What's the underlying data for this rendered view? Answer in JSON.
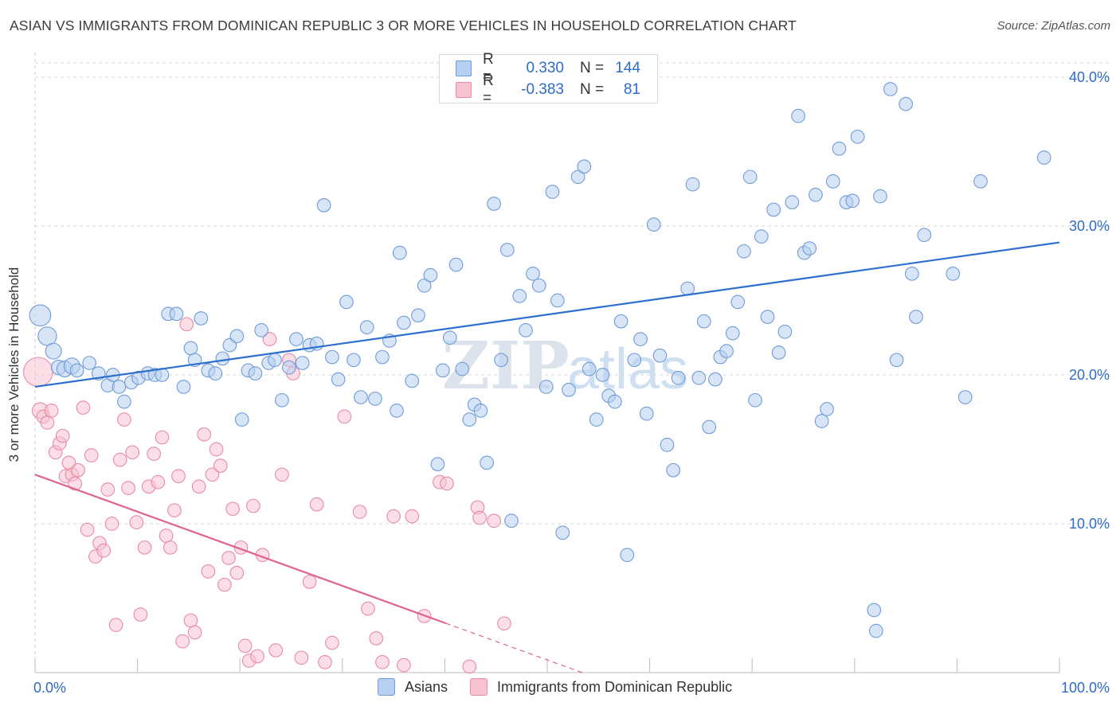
{
  "title": "ASIAN VS IMMIGRANTS FROM DOMINICAN REPUBLIC 3 OR MORE VEHICLES IN HOUSEHOLD CORRELATION CHART",
  "source": "Source: ZipAtlas.com",
  "watermark": {
    "zip": "ZIP",
    "atlas": "atlas"
  },
  "legend_stats": {
    "asians": {
      "r_label": "R =",
      "r_value": "0.330",
      "n_label": "N =",
      "n_value": "144"
    },
    "dominican": {
      "r_label": "R =",
      "r_value": "-0.383",
      "n_label": "N =",
      "n_value": "81"
    }
  },
  "legend": {
    "asians": "Asians",
    "dominican": "Immigrants from Dominican Republic"
  },
  "colors": {
    "asians_fill": "#b7cff0",
    "asians_stroke": "#6f9bd8",
    "asians_line": "#2d6fd0",
    "dominican_fill": "#f7c3d2",
    "dominican_stroke": "#e88aa8",
    "dominican_line": "#e0638d",
    "tick_label": "#2d6cc7",
    "grid": "#d9d9d9"
  },
  "chart_data": {
    "type": "scatter",
    "title": "ASIAN VS IMMIGRANTS FROM DOMINICAN REPUBLIC 3 OR MORE VEHICLES IN HOUSEHOLD CORRELATION CHART",
    "xlabel": "",
    "ylabel": "3 or more Vehicles in Household",
    "xlim": [
      0,
      100
    ],
    "ylim": [
      0,
      40
    ],
    "x_tick_labels": [
      "0.0%",
      "100.0%"
    ],
    "y_ticks": [
      10,
      20,
      30,
      40
    ],
    "y_tick_labels": [
      "10.0%",
      "20.0%",
      "30.0%",
      "40.0%"
    ],
    "grid": true,
    "legend_position": "bottom",
    "series": [
      {
        "name": "Asians",
        "r": 0.33,
        "n": 144,
        "trend": {
          "x": [
            0,
            100
          ],
          "y": [
            19.2,
            28.9
          ],
          "dashed_from_x": null
        },
        "points": [
          [
            0.5,
            24.0,
            1.6
          ],
          [
            1.2,
            22.6,
            1.4
          ],
          [
            1.8,
            21.6,
            1.2
          ],
          [
            2.3,
            20.5,
            1.1
          ],
          [
            2.9,
            20.4,
            1.2
          ],
          [
            3.6,
            20.6,
            1.2
          ],
          [
            4.1,
            20.3,
            1
          ],
          [
            5.3,
            20.8,
            1
          ],
          [
            6.2,
            20.1,
            1
          ],
          [
            7.1,
            19.3,
            1
          ],
          [
            7.6,
            20.0,
            1
          ],
          [
            8.2,
            19.2,
            1
          ],
          [
            8.7,
            18.2,
            1
          ],
          [
            9.4,
            19.5,
            1
          ],
          [
            10.1,
            19.8,
            1
          ],
          [
            11.0,
            20.1,
            1
          ],
          [
            11.7,
            20.0,
            1
          ],
          [
            12.4,
            20.0,
            1
          ],
          [
            13.0,
            24.1,
            1
          ],
          [
            13.8,
            24.1,
            1
          ],
          [
            14.5,
            19.2,
            1
          ],
          [
            15.2,
            21.8,
            1
          ],
          [
            15.6,
            21.0,
            1
          ],
          [
            16.2,
            23.8,
            1
          ],
          [
            16.9,
            20.3,
            1
          ],
          [
            17.6,
            20.1,
            1
          ],
          [
            18.3,
            21.1,
            1
          ],
          [
            19.0,
            22.0,
            1
          ],
          [
            19.7,
            22.6,
            1
          ],
          [
            20.2,
            17.0,
            1
          ],
          [
            20.8,
            20.3,
            1
          ],
          [
            21.5,
            20.1,
            1
          ],
          [
            22.1,
            23.0,
            1
          ],
          [
            22.8,
            20.8,
            1
          ],
          [
            23.4,
            21.0,
            1
          ],
          [
            24.1,
            18.3,
            1
          ],
          [
            24.8,
            20.5,
            1
          ],
          [
            25.5,
            22.4,
            1
          ],
          [
            26.1,
            20.8,
            1
          ],
          [
            26.8,
            22.0,
            1
          ],
          [
            27.5,
            22.1,
            1
          ],
          [
            28.2,
            31.4,
            1
          ],
          [
            29.0,
            21.2,
            1
          ],
          [
            29.6,
            19.7,
            1
          ],
          [
            30.4,
            24.9,
            1
          ],
          [
            31.1,
            21.0,
            1
          ],
          [
            31.8,
            18.5,
            1
          ],
          [
            32.4,
            23.2,
            1
          ],
          [
            33.2,
            18.4,
            1
          ],
          [
            33.9,
            21.2,
            1
          ],
          [
            34.6,
            22.3,
            1
          ],
          [
            35.3,
            17.6,
            1
          ],
          [
            35.6,
            28.2,
            1
          ],
          [
            36.0,
            23.5,
            1
          ],
          [
            36.8,
            19.6,
            1
          ],
          [
            37.4,
            24.0,
            1
          ],
          [
            38.0,
            26.0,
            1
          ],
          [
            38.6,
            26.7,
            1
          ],
          [
            39.3,
            14.0,
            1
          ],
          [
            39.8,
            20.3,
            1
          ],
          [
            40.5,
            22.5,
            1
          ],
          [
            41.1,
            27.4,
            1
          ],
          [
            41.7,
            20.4,
            1
          ],
          [
            42.4,
            17.0,
            1
          ],
          [
            42.9,
            18.0,
            1
          ],
          [
            43.5,
            17.6,
            1
          ],
          [
            44.1,
            14.1,
            1
          ],
          [
            44.8,
            31.5,
            1
          ],
          [
            45.5,
            21.0,
            1
          ],
          [
            46.1,
            28.4,
            1
          ],
          [
            46.5,
            10.2,
            1
          ],
          [
            47.3,
            25.3,
            1
          ],
          [
            47.9,
            23.0,
            1
          ],
          [
            48.6,
            26.8,
            1
          ],
          [
            49.2,
            26.0,
            1
          ],
          [
            49.9,
            19.2,
            1
          ],
          [
            50.5,
            32.3,
            1
          ],
          [
            51.0,
            25.0,
            1
          ],
          [
            51.5,
            9.4,
            1
          ],
          [
            52.1,
            19.0,
            1
          ],
          [
            53.0,
            33.3,
            1
          ],
          [
            53.6,
            34.0,
            1
          ],
          [
            54.1,
            20.4,
            1
          ],
          [
            54.8,
            17.0,
            1
          ],
          [
            55.4,
            20.0,
            1
          ],
          [
            56.0,
            18.6,
            1
          ],
          [
            56.6,
            18.2,
            1
          ],
          [
            57.2,
            23.6,
            1
          ],
          [
            57.8,
            7.9,
            1
          ],
          [
            58.5,
            21.0,
            1
          ],
          [
            59.1,
            22.4,
            1
          ],
          [
            59.7,
            17.4,
            1
          ],
          [
            60.4,
            30.1,
            1
          ],
          [
            61.0,
            21.3,
            1
          ],
          [
            61.7,
            15.3,
            1
          ],
          [
            62.3,
            13.6,
            1
          ],
          [
            62.8,
            19.8,
            1
          ],
          [
            63.7,
            25.8,
            1
          ],
          [
            64.2,
            32.8,
            1
          ],
          [
            64.8,
            19.8,
            1
          ],
          [
            65.3,
            23.6,
            1
          ],
          [
            65.8,
            16.5,
            1
          ],
          [
            66.4,
            19.7,
            1
          ],
          [
            66.9,
            21.2,
            1
          ],
          [
            67.5,
            21.6,
            1
          ],
          [
            68.1,
            22.8,
            1
          ],
          [
            68.6,
            24.9,
            1
          ],
          [
            69.2,
            28.3,
            1
          ],
          [
            69.8,
            33.3,
            1
          ],
          [
            70.3,
            18.3,
            1
          ],
          [
            70.9,
            29.3,
            1
          ],
          [
            71.5,
            23.9,
            1
          ],
          [
            72.1,
            31.1,
            1
          ],
          [
            72.6,
            21.5,
            1
          ],
          [
            73.2,
            22.9,
            1
          ],
          [
            73.9,
            31.6,
            1
          ],
          [
            74.5,
            37.4,
            1
          ],
          [
            75.1,
            28.2,
            1
          ],
          [
            75.6,
            28.5,
            1
          ],
          [
            76.2,
            32.1,
            1
          ],
          [
            76.8,
            16.9,
            1
          ],
          [
            77.3,
            17.7,
            1
          ],
          [
            77.9,
            33.0,
            1
          ],
          [
            78.5,
            35.2,
            1
          ],
          [
            79.2,
            31.6,
            1
          ],
          [
            79.8,
            31.7,
            1
          ],
          [
            80.3,
            36.0,
            1
          ],
          [
            81.9,
            4.2,
            1
          ],
          [
            82.1,
            2.8,
            1
          ],
          [
            82.5,
            32.0,
            1
          ],
          [
            83.5,
            39.2,
            1
          ],
          [
            84.1,
            21.0,
            1
          ],
          [
            85.0,
            38.2,
            1
          ],
          [
            85.6,
            26.8,
            1
          ],
          [
            86.0,
            23.9,
            1
          ],
          [
            86.8,
            29.4,
            1
          ],
          [
            89.6,
            26.8,
            1
          ],
          [
            90.8,
            18.5,
            1
          ],
          [
            92.3,
            33.0,
            1
          ],
          [
            98.5,
            34.6,
            1
          ]
        ]
      },
      {
        "name": "Immigrants from Dominican Republic",
        "r": -0.383,
        "n": 81,
        "trend": {
          "x": [
            0,
            100
          ],
          "y": [
            13.3,
            -11.6
          ],
          "dashed_from_x": 40.1
        },
        "points": [
          [
            0.3,
            20.2,
            2.2
          ],
          [
            0.5,
            17.6,
            1.2
          ],
          [
            0.8,
            17.2,
            1
          ],
          [
            1.2,
            16.8,
            1
          ],
          [
            1.6,
            17.6,
            1
          ],
          [
            2.0,
            14.8,
            1
          ],
          [
            2.4,
            15.4,
            1
          ],
          [
            2.7,
            15.9,
            1
          ],
          [
            3.0,
            13.2,
            1
          ],
          [
            3.3,
            14.1,
            1
          ],
          [
            3.6,
            13.3,
            1
          ],
          [
            3.9,
            12.7,
            1
          ],
          [
            4.2,
            13.6,
            1
          ],
          [
            4.7,
            17.8,
            1
          ],
          [
            5.1,
            9.6,
            1
          ],
          [
            5.5,
            14.6,
            1
          ],
          [
            5.9,
            7.8,
            1
          ],
          [
            6.3,
            8.7,
            1
          ],
          [
            6.7,
            8.2,
            1
          ],
          [
            7.1,
            12.3,
            1
          ],
          [
            7.5,
            10.0,
            1
          ],
          [
            7.9,
            3.2,
            1
          ],
          [
            8.3,
            14.3,
            1
          ],
          [
            8.7,
            17.0,
            1
          ],
          [
            9.1,
            12.4,
            1
          ],
          [
            9.5,
            14.8,
            1
          ],
          [
            9.9,
            10.1,
            1
          ],
          [
            10.3,
            3.9,
            1
          ],
          [
            10.7,
            8.4,
            1
          ],
          [
            11.1,
            12.5,
            1
          ],
          [
            11.6,
            14.7,
            1
          ],
          [
            12.0,
            12.8,
            1
          ],
          [
            12.4,
            15.8,
            1
          ],
          [
            12.8,
            9.2,
            1
          ],
          [
            13.2,
            8.4,
            1
          ],
          [
            13.6,
            10.9,
            1
          ],
          [
            14.0,
            13.2,
            1
          ],
          [
            14.4,
            2.1,
            1
          ],
          [
            14.8,
            23.4,
            1
          ],
          [
            15.2,
            3.5,
            1
          ],
          [
            15.6,
            2.7,
            1
          ],
          [
            16.0,
            12.5,
            1
          ],
          [
            16.5,
            16.0,
            1
          ],
          [
            16.9,
            6.8,
            1
          ],
          [
            17.3,
            13.3,
            1
          ],
          [
            17.7,
            15.0,
            1
          ],
          [
            18.1,
            13.9,
            1
          ],
          [
            18.5,
            5.9,
            1
          ],
          [
            18.9,
            7.7,
            1
          ],
          [
            19.3,
            11.0,
            1
          ],
          [
            19.7,
            6.7,
            1
          ],
          [
            20.1,
            8.4,
            1
          ],
          [
            20.5,
            1.8,
            1
          ],
          [
            20.9,
            0.8,
            1
          ],
          [
            21.3,
            11.2,
            1
          ],
          [
            21.7,
            1.1,
            1
          ],
          [
            22.2,
            7.9,
            1
          ],
          [
            22.9,
            22.4,
            1
          ],
          [
            23.5,
            1.5,
            1
          ],
          [
            24.1,
            13.3,
            1
          ],
          [
            24.8,
            21.0,
            1
          ],
          [
            25.2,
            20.1,
            1
          ],
          [
            26.0,
            1.0,
            1
          ],
          [
            26.8,
            6.1,
            1
          ],
          [
            27.5,
            11.3,
            1
          ],
          [
            28.3,
            0.7,
            1
          ],
          [
            29.0,
            2.0,
            1
          ],
          [
            30.2,
            17.2,
            1
          ],
          [
            31.7,
            10.8,
            1
          ],
          [
            32.5,
            4.3,
            1
          ],
          [
            33.3,
            2.3,
            1
          ],
          [
            33.9,
            0.7,
            1
          ],
          [
            35.0,
            10.5,
            1
          ],
          [
            36.0,
            0.5,
            1
          ],
          [
            36.8,
            10.5,
            1
          ],
          [
            38.0,
            3.8,
            1
          ],
          [
            39.5,
            12.8,
            1
          ],
          [
            40.2,
            12.7,
            1
          ],
          [
            42.4,
            0.4,
            1
          ],
          [
            43.2,
            11.1,
            1
          ],
          [
            43.4,
            10.4,
            1
          ],
          [
            44.8,
            10.2,
            1
          ],
          [
            45.8,
            3.3,
            1
          ]
        ]
      }
    ]
  }
}
